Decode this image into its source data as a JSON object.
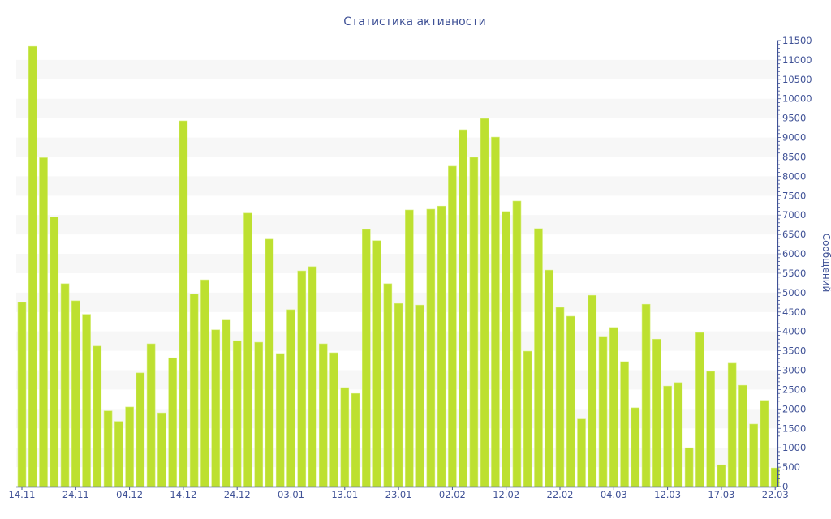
{
  "chart_data": {
    "type": "bar",
    "title": "Статистика активности",
    "ylabel": "Сообщений",
    "xlabel": "",
    "ylim": [
      0,
      11500
    ],
    "y_tick_step": 500,
    "y_axis_side": "right",
    "grid": "alternating horizontal bands every 500",
    "colors": {
      "bar": "#bde030",
      "bar_edge": "#d6ee7a",
      "text": "#3f5196",
      "axis": "#3f5196",
      "band": "#f7f7f7"
    },
    "categories": [
      "14.11",
      "",
      "",
      "",
      "",
      "24.11",
      "",
      "",
      "",
      "",
      "04.12",
      "",
      "",
      "",
      "",
      "14.12",
      "",
      "",
      "",
      "",
      "24.12",
      "",
      "",
      "",
      "",
      "03.01",
      "",
      "",
      "",
      "",
      "13.01",
      "",
      "",
      "",
      "",
      "23.01",
      "",
      "",
      "",
      "",
      "02.02",
      "",
      "",
      "",
      "",
      "12.02",
      "",
      "",
      "",
      "",
      "22.02",
      "",
      "",
      "",
      "",
      "04.03",
      "",
      "",
      "",
      "",
      "12.03",
      "",
      "",
      "",
      "",
      "17.03",
      "",
      "",
      "",
      "",
      "22.03"
    ],
    "values": [
      4750,
      11350,
      8480,
      6950,
      5230,
      4790,
      4440,
      3620,
      1950,
      1680,
      2050,
      2930,
      3680,
      1900,
      3320,
      9430,
      4960,
      5330,
      4040,
      4310,
      3760,
      7050,
      3720,
      6380,
      3430,
      4560,
      5560,
      5670,
      3680,
      3450,
      2550,
      2400,
      6630,
      6340,
      5230,
      4720,
      7130,
      4680,
      7150,
      7230,
      8260,
      9200,
      8490,
      9490,
      9010,
      7090,
      7360,
      3490,
      6650,
      5580,
      4620,
      4390,
      1740,
      4930,
      3870,
      4100,
      3220,
      2030,
      4700,
      3800,
      2590,
      2680,
      1000,
      3970,
      2970,
      560,
      3180,
      2610,
      1610,
      2220,
      480
    ]
  }
}
